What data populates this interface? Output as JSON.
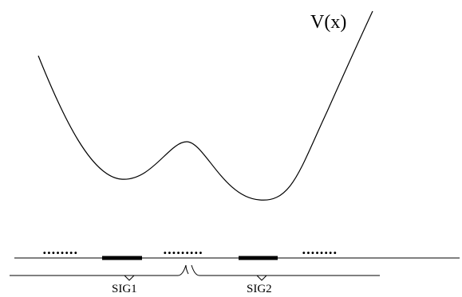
{
  "curve_label": "V(x)",
  "dots": [
    "........",
    ".........",
    "........"
  ],
  "regions": [
    {
      "label": "SIG1"
    },
    {
      "label": "SIG2"
    }
  ],
  "colors": {
    "ink": "#000000",
    "background": "#ffffff"
  }
}
